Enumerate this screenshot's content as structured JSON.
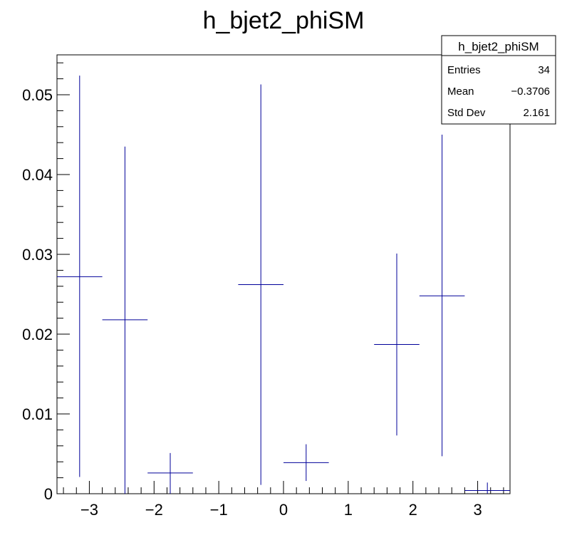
{
  "chart_data": {
    "type": "scatter",
    "title": "h_bjet2_phiSM",
    "xlabel": "",
    "ylabel": "",
    "xlim": [
      -3.5,
      3.5
    ],
    "ylim": [
      0,
      0.055
    ],
    "x_ticks": [
      -3,
      -2,
      -1,
      0,
      1,
      2,
      3
    ],
    "x_tick_labels": [
      "−3",
      "−2",
      "−1",
      "0",
      "1",
      "2",
      "3"
    ],
    "y_ticks": [
      0,
      0.01,
      0.02,
      0.03,
      0.04,
      0.05
    ],
    "y_tick_labels": [
      "0",
      "0.01",
      "0.02",
      "0.03",
      "0.04",
      "0.05"
    ],
    "grid": false,
    "series": [
      {
        "x": [
          -3.15,
          -2.45,
          -1.75,
          -0.35,
          0.35,
          1.75,
          2.45,
          3.15
        ],
        "xerr": 0.35,
        "y": [
          0.0272,
          0.0218,
          0.0026,
          0.0262,
          0.0039,
          0.0187,
          0.0248,
          0.0004
        ],
        "yerr_low": [
          0.0251,
          0.0218,
          0.0026,
          0.0251,
          0.0023,
          0.0114,
          0.0201,
          0.0004
        ],
        "yerr_high": [
          0.0252,
          0.0217,
          0.0025,
          0.0251,
          0.0023,
          0.0114,
          0.0202,
          0.001
        ],
        "color": "#000099"
      }
    ],
    "stats_box": {
      "placement": "top-right",
      "title": "h_bjet2_phiSM",
      "rows": [
        {
          "label": "Entries",
          "value": "34"
        },
        {
          "label": "Mean",
          "value": "−0.3706"
        },
        {
          "label": "Std Dev",
          "value": "2.161"
        }
      ]
    }
  }
}
